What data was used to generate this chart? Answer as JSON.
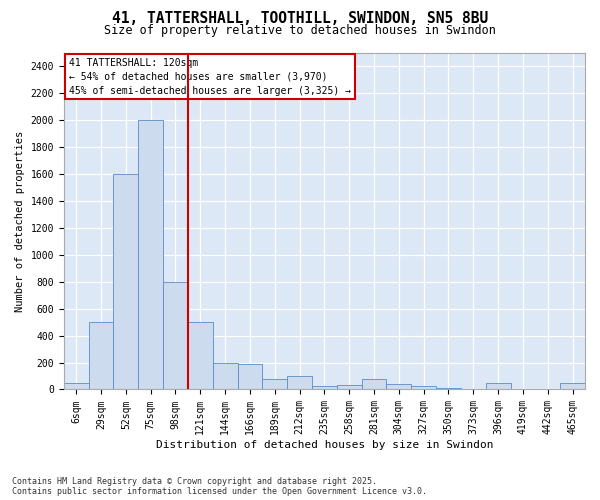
{
  "title1": "41, TATTERSHALL, TOOTHILL, SWINDON, SN5 8BU",
  "title2": "Size of property relative to detached houses in Swindon",
  "xlabel": "Distribution of detached houses by size in Swindon",
  "ylabel": "Number of detached properties",
  "footer": "Contains HM Land Registry data © Crown copyright and database right 2025.\nContains public sector information licensed under the Open Government Licence v3.0.",
  "annotation_title": "41 TATTERSHALL: 120sqm",
  "annotation_line1": "← 54% of detached houses are smaller (3,970)",
  "annotation_line2": "45% of semi-detached houses are larger (3,325) →",
  "bar_labels": [
    "6sqm",
    "29sqm",
    "52sqm",
    "75sqm",
    "98sqm",
    "121sqm",
    "144sqm",
    "166sqm",
    "189sqm",
    "212sqm",
    "235sqm",
    "258sqm",
    "281sqm",
    "304sqm",
    "327sqm",
    "350sqm",
    "373sqm",
    "396sqm",
    "419sqm",
    "442sqm",
    "465sqm"
  ],
  "bar_values": [
    50,
    500,
    1600,
    2000,
    800,
    500,
    200,
    190,
    80,
    100,
    25,
    30,
    80,
    40,
    25,
    10,
    0,
    50,
    0,
    0,
    50
  ],
  "bar_color": "#ccdcee",
  "bar_edge_color": "#5b8cc8",
  "vline_color": "#cc0000",
  "vline_x_idx": 4.5,
  "annotation_box_edgecolor": "#cc0000",
  "plot_bg_color": "#dce8f5",
  "grid_color": "#ffffff",
  "ylim": [
    0,
    2500
  ],
  "yticks": [
    0,
    200,
    400,
    600,
    800,
    1000,
    1200,
    1400,
    1600,
    1800,
    2000,
    2200,
    2400
  ],
  "title1_fontsize": 10.5,
  "title2_fontsize": 8.5,
  "tick_fontsize": 7,
  "ylabel_fontsize": 7.5,
  "xlabel_fontsize": 8,
  "annot_fontsize": 7,
  "footer_fontsize": 6
}
